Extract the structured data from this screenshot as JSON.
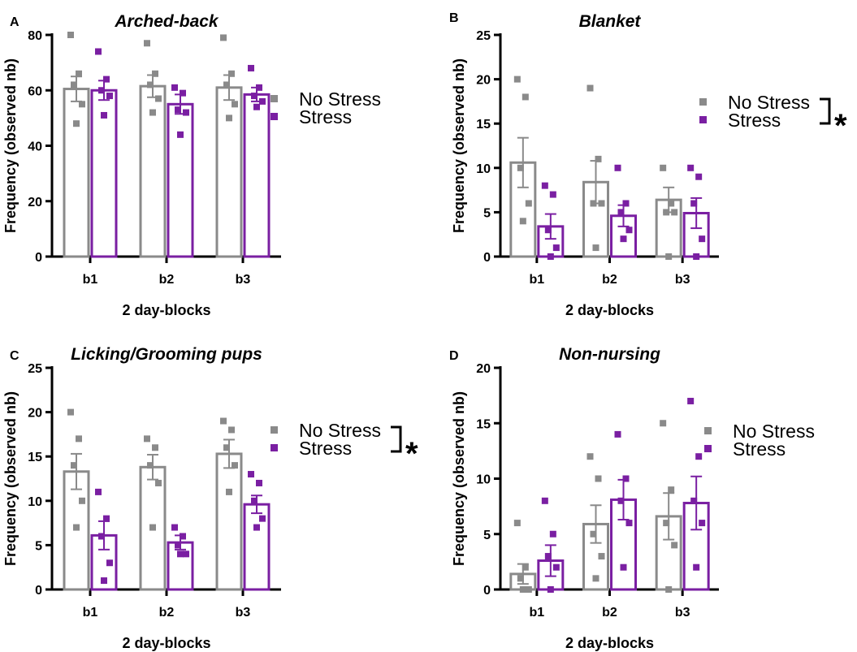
{
  "colors": {
    "no_stress": "#8a8a8a",
    "stress": "#7a1fa2",
    "axis": "#000000"
  },
  "chart_data": [
    {
      "panel": "A",
      "type": "bar",
      "title": "Arched-back",
      "xlabel": "2 day-blocks",
      "ylabel": "Frequency (observed nb)",
      "categories": [
        "b1",
        "b2",
        "b3"
      ],
      "ylim": [
        0,
        80
      ],
      "yticks": [
        0,
        20,
        40,
        60,
        80
      ],
      "legend": {
        "placement": "right",
        "entries": [
          "No Stress",
          "Stress"
        ]
      },
      "significance": "",
      "series": [
        {
          "name": "No Stress",
          "values": [
            60.5,
            61.5,
            61
          ],
          "sem": [
            4.5,
            4,
            4.5
          ],
          "points": [
            [
              80,
              66,
              62,
              55,
              48
            ],
            [
              77,
              66,
              62,
              57,
              52
            ],
            [
              79,
              66,
              62,
              55,
              50
            ]
          ]
        },
        {
          "name": "Stress",
          "values": [
            60,
            55,
            58.5
          ],
          "sem": [
            3.5,
            3.5,
            2.5
          ],
          "points": [
            [
              74,
              64,
              60,
              58,
              51
            ],
            [
              61,
              59,
              53,
              52,
              44
            ],
            [
              68,
              61,
              58,
              56,
              54
            ]
          ]
        }
      ]
    },
    {
      "panel": "B",
      "type": "bar",
      "title": "Blanket",
      "xlabel": "2 day-blocks",
      "ylabel": "Frequency (observed nb)",
      "categories": [
        "b1",
        "b2",
        "b3"
      ],
      "ylim": [
        0,
        25
      ],
      "yticks": [
        0,
        5,
        10,
        15,
        20,
        25
      ],
      "legend": {
        "placement": "right",
        "entries": [
          "No Stress",
          "Stress"
        ]
      },
      "significance": "*",
      "series": [
        {
          "name": "No Stress",
          "values": [
            10.6,
            8.4,
            6.4
          ],
          "sem": [
            2.8,
            2.4,
            1.4
          ],
          "points": [
            [
              20,
              18,
              10,
              6,
              4
            ],
            [
              19,
              11,
              6,
              6,
              1
            ],
            [
              10,
              6,
              5,
              5,
              0
            ]
          ]
        },
        {
          "name": "Stress",
          "values": [
            3.4,
            4.6,
            4.9
          ],
          "sem": [
            1.4,
            1.2,
            1.7
          ],
          "points": [
            [
              8,
              7,
              3,
              1,
              0
            ],
            [
              10,
              6,
              5,
              3,
              2
            ],
            [
              10,
              9,
              6,
              2,
              0
            ]
          ]
        }
      ]
    },
    {
      "panel": "C",
      "type": "bar",
      "title": "Licking/Grooming pups",
      "xlabel": "2 day-blocks",
      "ylabel": "Frequency (observed nb)",
      "categories": [
        "b1",
        "b2",
        "b3"
      ],
      "ylim": [
        0,
        25
      ],
      "yticks": [
        0,
        5,
        10,
        15,
        20,
        25
      ],
      "legend": {
        "placement": "right",
        "entries": [
          "No Stress",
          "Stress"
        ]
      },
      "significance": "*",
      "series": [
        {
          "name": "No Stress",
          "values": [
            13.3,
            13.8,
            15.3
          ],
          "sem": [
            2.0,
            1.4,
            1.6
          ],
          "points": [
            [
              20,
              17,
              14,
              10,
              7
            ],
            [
              17,
              16,
              14,
              12,
              7
            ],
            [
              19,
              18,
              16,
              14,
              11
            ]
          ]
        },
        {
          "name": "Stress",
          "values": [
            6.1,
            5.3,
            9.6
          ],
          "sem": [
            1.6,
            0.8,
            1.0
          ],
          "points": [
            [
              11,
              8,
              6,
              3,
              1
            ],
            [
              7,
              6,
              5,
              4,
              4
            ],
            [
              13,
              12,
              10,
              8,
              7
            ]
          ]
        }
      ]
    },
    {
      "panel": "D",
      "type": "bar",
      "title": "Non-nursing",
      "xlabel": "2 day-blocks",
      "ylabel": "Frequency (observed nb)",
      "categories": [
        "b1",
        "b2",
        "b3"
      ],
      "ylim": [
        0,
        20
      ],
      "yticks": [
        0,
        5,
        10,
        15,
        20
      ],
      "legend": {
        "placement": "right",
        "entries": [
          "No Stress",
          "Stress"
        ]
      },
      "significance": "",
      "series": [
        {
          "name": "No Stress",
          "values": [
            1.4,
            5.9,
            6.6
          ],
          "sem": [
            0.9,
            1.7,
            2.1
          ],
          "points": [
            [
              6,
              2,
              1,
              0,
              0
            ],
            [
              12,
              10,
              5,
              3,
              1
            ],
            [
              15,
              9,
              6,
              4,
              0
            ]
          ]
        },
        {
          "name": "Stress",
          "values": [
            2.6,
            8.1,
            7.8
          ],
          "sem": [
            1.4,
            1.8,
            2.4
          ],
          "points": [
            [
              8,
              5,
              3,
              2,
              0
            ],
            [
              14,
              10,
              8,
              6,
              2
            ],
            [
              17,
              12,
              8,
              6,
              2
            ]
          ]
        }
      ]
    }
  ]
}
